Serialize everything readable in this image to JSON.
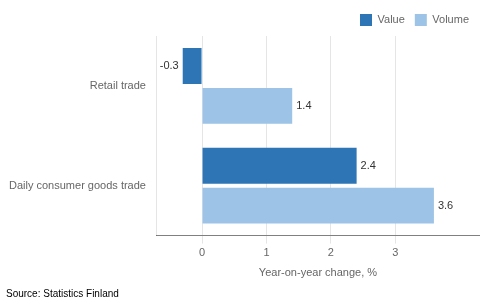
{
  "chart_data": {
    "type": "bar",
    "orientation": "horizontal",
    "categories": [
      "Daily consumer goods trade",
      "Retail trade"
    ],
    "series": [
      {
        "name": "Value",
        "color": "#2e75b6",
        "values": [
          2.4,
          -0.3
        ]
      },
      {
        "name": "Volume",
        "color": "#9dc3e6",
        "values": [
          3.6,
          1.4
        ]
      }
    ],
    "xlabel": "Year-on-year change, %",
    "xlim": [
      -0.7,
      4.3
    ],
    "xticks": [
      0,
      1,
      2,
      3
    ],
    "grid": true,
    "legend": "upper right",
    "data_labels": true,
    "annotation": "Source: Statistics Finland"
  }
}
